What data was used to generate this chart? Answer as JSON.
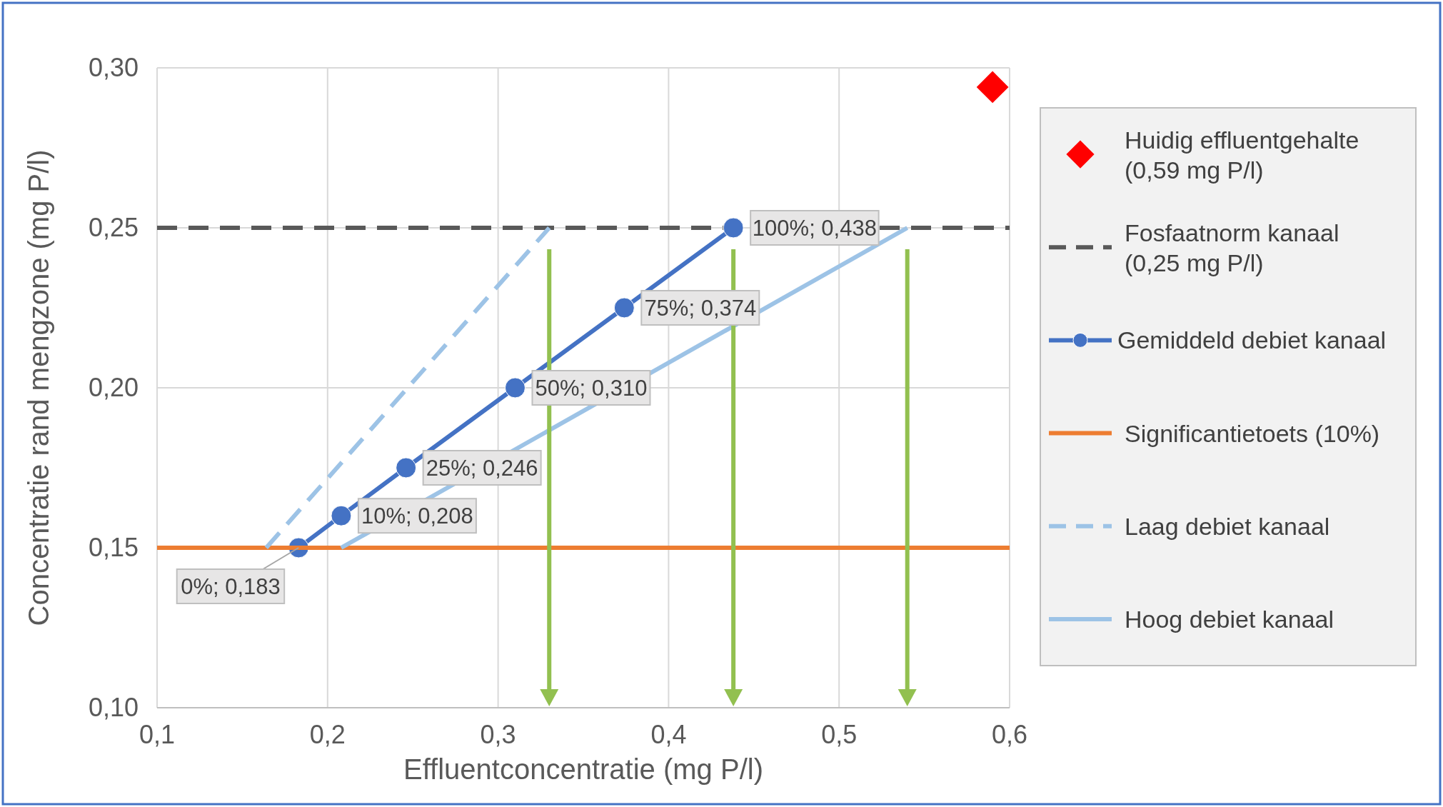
{
  "chart_data": {
    "type": "line",
    "xlabel": "Effluentconcentratie (mg P/l)",
    "ylabel": "Concentratie rand mengzone (mg P/l)",
    "xlim": [
      0.1,
      0.6
    ],
    "xticks": [
      {
        "value": 0.1,
        "label": "0,1"
      },
      {
        "value": 0.2,
        "label": "0,2"
      },
      {
        "value": 0.3,
        "label": "0,3"
      },
      {
        "value": 0.4,
        "label": "0,4"
      },
      {
        "value": 0.5,
        "label": "0,5"
      },
      {
        "value": 0.6,
        "label": "0,6"
      }
    ],
    "ylim": [
      0.1,
      0.3
    ],
    "yticks": [
      {
        "value": 0.1,
        "label": "0,10"
      },
      {
        "value": 0.15,
        "label": "0,15"
      },
      {
        "value": 0.2,
        "label": "0,20"
      },
      {
        "value": 0.25,
        "label": "0,25"
      },
      {
        "value": 0.3,
        "label": "0,30"
      }
    ],
    "grid": true,
    "legend": "right",
    "annotations": [
      {
        "text": "0%; 0,183",
        "x": 0.183,
        "y": 0.15
      },
      {
        "text": "10%; 0,208",
        "x": 0.208,
        "y": 0.16
      },
      {
        "text": "25%; 0,246",
        "x": 0.246,
        "y": 0.175
      },
      {
        "text": "50%; 0,310",
        "x": 0.31,
        "y": 0.2
      },
      {
        "text": "75%; 0,374",
        "x": 0.374,
        "y": 0.225
      },
      {
        "text": "100%; 0,438",
        "x": 0.438,
        "y": 0.25
      }
    ],
    "series": [
      {
        "name": "Huidig effluentgehalte (0,59 mg P/l)",
        "type": "scatter",
        "marker": "diamond",
        "color": "#ff0000",
        "x": [
          0.59
        ],
        "values": [
          0.294
        ]
      },
      {
        "name": "Fosfaatnorm kanaal (0,25 mg P/l)",
        "line_style": "dashed",
        "color": "#595959",
        "x": [
          0.1,
          0.6
        ],
        "values": [
          0.25,
          0.25
        ]
      },
      {
        "name": "Gemiddeld debiet kanaal",
        "marker": "circle",
        "color": "#4472c4",
        "x": [
          0.183,
          0.208,
          0.246,
          0.31,
          0.374,
          0.438
        ],
        "values": [
          0.15,
          0.16,
          0.175,
          0.2,
          0.225,
          0.25
        ]
      },
      {
        "name": "Significantietoets (10%)",
        "color": "#ed7d31",
        "x": [
          0.1,
          0.6
        ],
        "values": [
          0.15,
          0.15
        ]
      },
      {
        "name": "Laag debiet kanaal",
        "line_style": "dashed",
        "color": "#9dc3e6",
        "x": [
          0.164,
          0.33
        ],
        "values": [
          0.15,
          0.25
        ]
      },
      {
        "name": "Hoog debiet kanaal",
        "color": "#9dc3e6",
        "x": [
          0.208,
          0.54
        ],
        "values": [
          0.15,
          0.25
        ]
      }
    ]
  }
}
